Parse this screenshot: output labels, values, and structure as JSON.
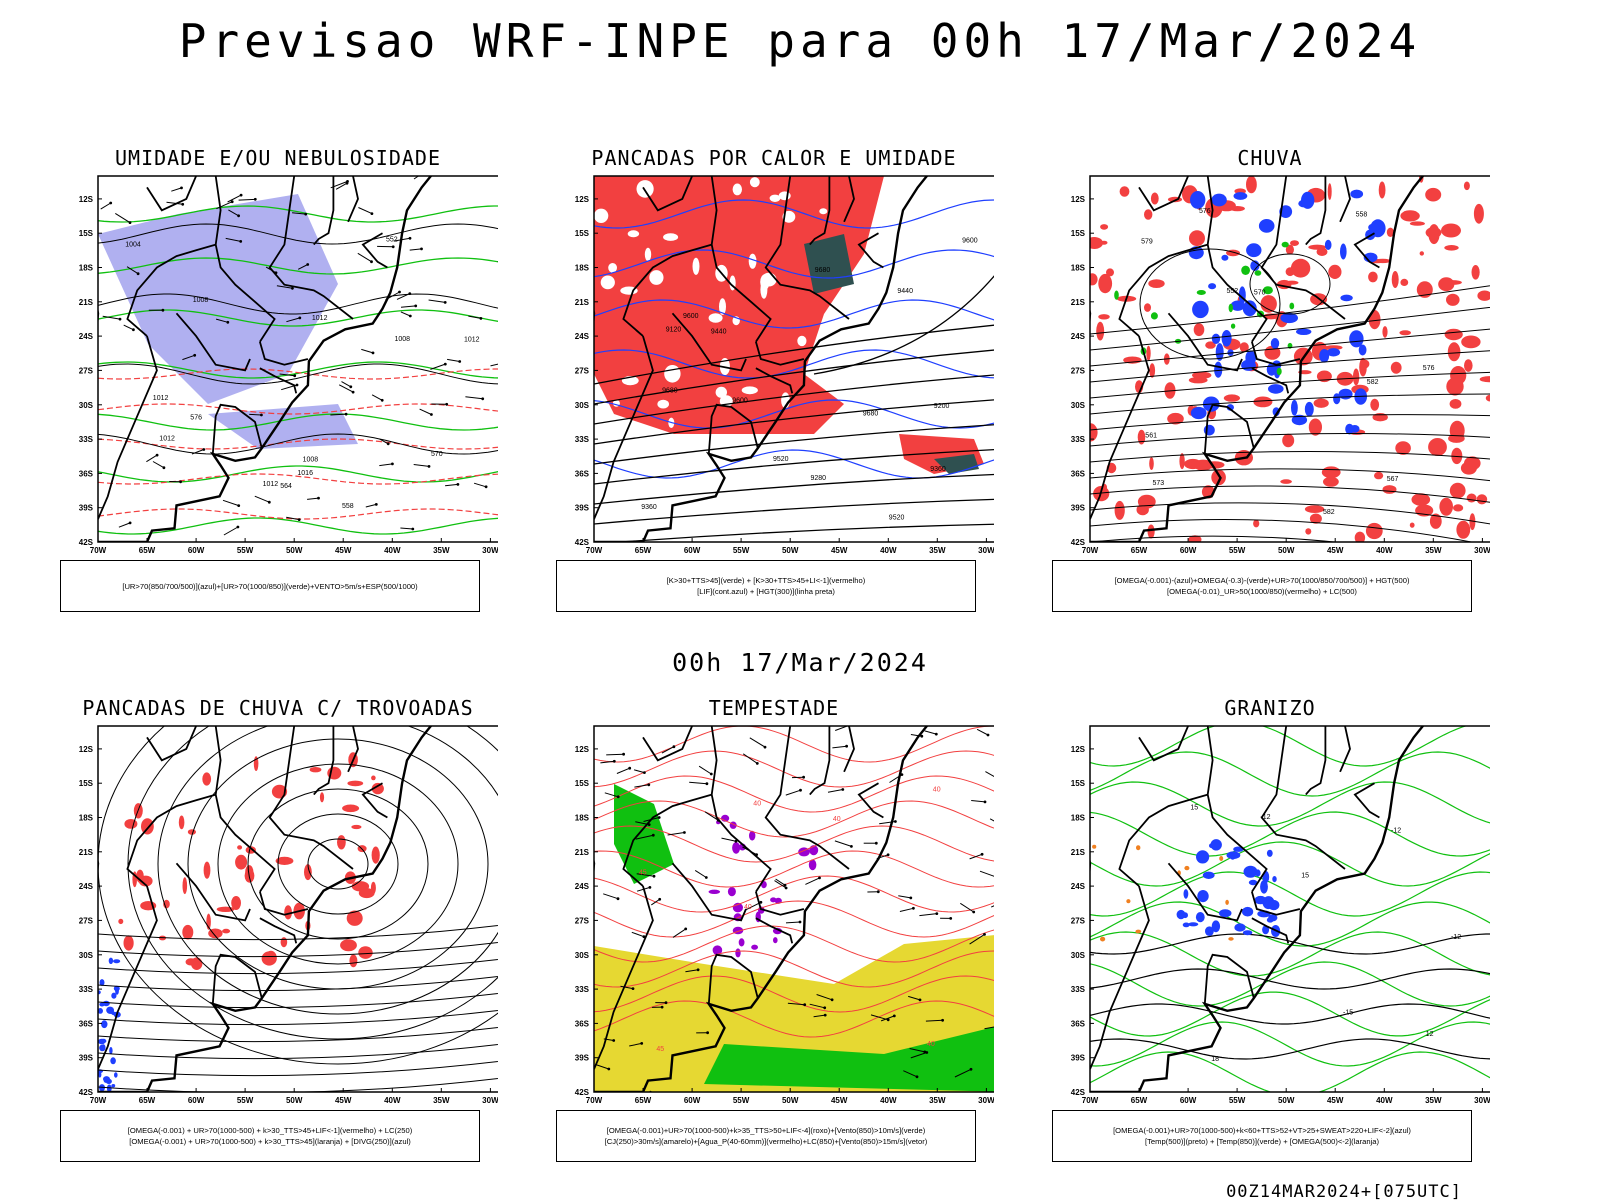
{
  "title": "Previsao WRF-INPE  para 00h 17/Mar/2024",
  "mid_title": "00h 17/Mar/2024",
  "footer": "00Z14MAR2024+[075UTC]",
  "axes": {
    "lat_labels": [
      "12S",
      "15S",
      "18S",
      "21S",
      "24S",
      "27S",
      "30S",
      "33S",
      "36S",
      "39S",
      "42S"
    ],
    "lon_labels": [
      "70W",
      "65W",
      "60W",
      "55W",
      "50W",
      "45W",
      "40W",
      "35W",
      "30W"
    ]
  },
  "colors": {
    "red": "#f24040",
    "blue": "#1f3fff",
    "green": "#10c010",
    "lavender": "#b0b0f0",
    "yellow": "#e6d832",
    "darkteal": "#2f5050",
    "purple": "#9a00d0",
    "orange": "#f08020"
  },
  "panels": [
    {
      "title": "UMIDADE E/OU NEBULOSIDADE",
      "legend": [
        "[UR>70(850/700/500)](azul)+[UR>70(1000/850)](verde)+VENTO>5m/s+ESP(500/1000)"
      ],
      "contour_labels": [
        "1012",
        "1008",
        "1012",
        "1004",
        "1012",
        "1012",
        "1016",
        "1012",
        "1008",
        "1008",
        "576",
        "570",
        "564",
        "558",
        "552"
      ]
    },
    {
      "title": "PANCADAS POR CALOR E UMIDADE",
      "legend": [
        "[K>30+TTS>45](verde) + [K>30+TTS>45+LI<-1](vermelho)",
        "[LIF](cont.azul) + [HGT(300)](linha preta)"
      ],
      "contour_labels": [
        "9680",
        "9680",
        "9600",
        "9680",
        "9600",
        "9520",
        "9440",
        "9360",
        "9280",
        "9200",
        "9120",
        "9600",
        "9520",
        "9440",
        "9360"
      ]
    },
    {
      "title": "CHUVA",
      "legend": [
        "[OMEGA(-0.001)-(azul)+OMEGA(-0.3)-(verde)+UR>70(1000/850/700/500)] + HGT(500)",
        "[OMEGA(-0.01)_UR>50(1000/850)(vermelho) + LC(500)"
      ],
      "contour_labels": [
        "582",
        "576",
        "573",
        "576",
        "570",
        "567",
        "561",
        "558",
        "552",
        "582",
        "579"
      ]
    },
    {
      "title": "PANCADAS DE CHUVA C/ TROVOADAS",
      "legend": [
        "[OMEGA(-0.001) + UR>70(1000-500) + k>30_TTS>45+LIF<-1](vermelho) + LC(250)",
        "[OMEGA(-0.001) + UR>70(1000-500) + k>30_TTS>45](laranja) + [DIVG(250)](azul)"
      ],
      "contour_labels": []
    },
    {
      "title": "TEMPESTADE",
      "legend": [
        "[OMEGA(-0.001)+UR>70(1000-500)+k>35_TTS>50+LIF<-4](roxo)+[Vento(850)>10m/s](verde)",
        "[CJ(250)>30m/s](amarelo)+[Agua_P(40-60mm)](vermelho)+LC(850)+[Vento(850)>15m/s](vetor)"
      ],
      "contour_labels": [
        "40",
        "45",
        "40",
        "40",
        "40",
        "45",
        "40"
      ]
    },
    {
      "title": "GRANIZO",
      "legend": [
        "[OMEGA(-0.001)+UR>70(1000-500)+k<60+TTS>52+VT>25+SWEAT>220+LIF<-2](azul)",
        "[Temp(500)](preto) + [Temp(850)](verde) + [OMEGA(500)<-2](laranja)"
      ],
      "contour_labels": [
        "-12",
        "-15",
        "-12",
        "-12",
        "15",
        "18",
        "15",
        "12"
      ]
    }
  ]
}
